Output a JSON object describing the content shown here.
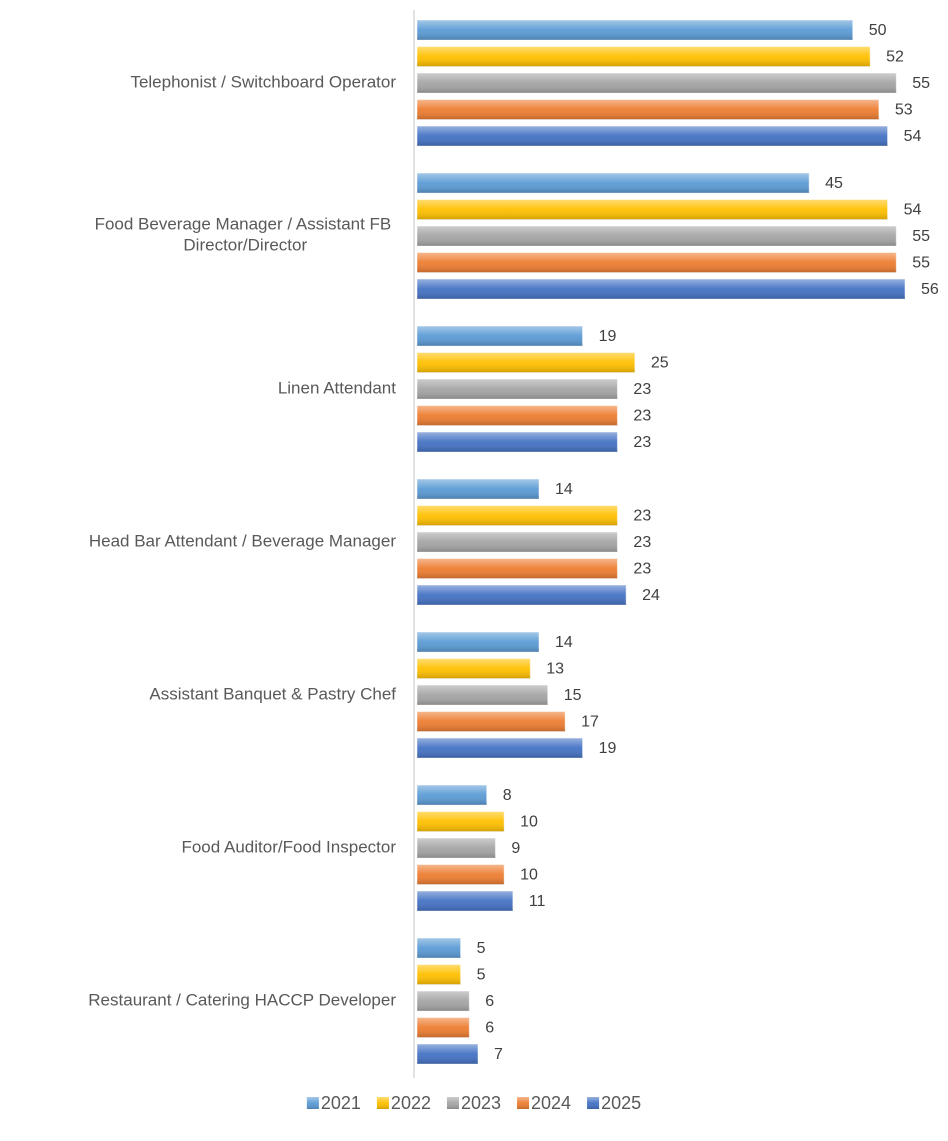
{
  "chart_data": {
    "type": "hbar",
    "categories": [
      "Telephonist / Switchboard Operator",
      "Food Beverage Manager / Assistant FB Director/Director",
      "Linen Attendant",
      "Head Bar Attendant / Beverage Manager",
      "Assistant Banquet & Pastry Chef",
      "Food Auditor/Food Inspector",
      "Restaurant / Catering HACCP Developer"
    ],
    "series": [
      {
        "name": "2021",
        "color": "#5b9bd5",
        "values": [
          50,
          45,
          19,
          14,
          14,
          8,
          5
        ]
      },
      {
        "name": "2022",
        "color": "#ffc000",
        "values": [
          52,
          54,
          25,
          23,
          13,
          10,
          5
        ]
      },
      {
        "name": "2023",
        "color": "#a5a5a5",
        "values": [
          55,
          55,
          23,
          23,
          15,
          9,
          6
        ]
      },
      {
        "name": "2024",
        "color": "#ed7d31",
        "values": [
          53,
          55,
          23,
          23,
          17,
          10,
          6
        ]
      },
      {
        "name": "2025",
        "color": "#4472c4",
        "values": [
          54,
          56,
          23,
          24,
          19,
          11,
          7
        ]
      }
    ],
    "legend": "bottom"
  }
}
